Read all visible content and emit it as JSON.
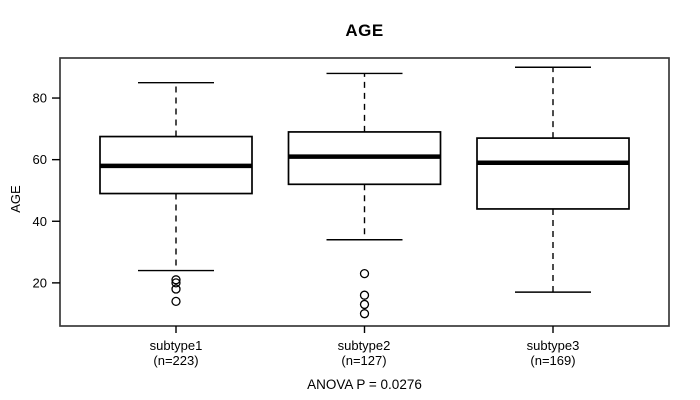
{
  "chart_data": {
    "type": "box",
    "title": "AGE",
    "ylabel": "AGE",
    "annotation": "ANOVA P = 0.0276",
    "yticks": [
      20,
      40,
      60,
      80
    ],
    "ylim": [
      6,
      93
    ],
    "grid": false,
    "groups": [
      {
        "label": "subtype1",
        "n_label": "(n=223)",
        "whisker_low": 24,
        "q1": 49,
        "median": 58,
        "q3": 67.5,
        "whisker_high": 85,
        "outliers": [
          21,
          20,
          18,
          14
        ]
      },
      {
        "label": "subtype2",
        "n_label": "(n=127)",
        "whisker_low": 34,
        "q1": 52,
        "median": 61,
        "q3": 69,
        "whisker_high": 88,
        "outliers": [
          23,
          16,
          13,
          10
        ]
      },
      {
        "label": "subtype3",
        "n_label": "(n=169)",
        "whisker_low": 17,
        "q1": 44,
        "median": 59,
        "q3": 67,
        "whisker_high": 90,
        "outliers": []
      }
    ],
    "colors": {
      "stroke": "#000000",
      "frame": "#3a3a3a",
      "median": "#000000",
      "box_fill": "#ffffff"
    }
  }
}
